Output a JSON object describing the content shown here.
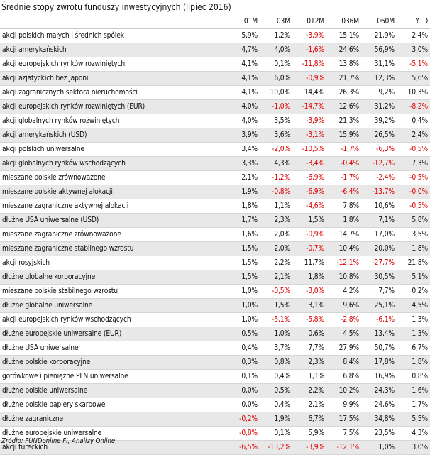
{
  "title": "Średnie stopy zwrotu funduszy inwestycyjnych (lipiec 2016)",
  "columns": [
    "",
    "01M",
    "03M",
    "012M",
    "036M",
    "060M",
    "YTD"
  ],
  "rows": [
    {
      "name": "akcji polskich małych i średnich spółek",
      "v": [
        "5,9%",
        "1,2%",
        "-3,9%",
        "15,1%",
        "21,9%",
        "2,4%"
      ]
    },
    {
      "name": "akcji amerykańskich",
      "v": [
        "4,7%",
        "4,0%",
        "-1,6%",
        "24,6%",
        "56,9%",
        "3,0%"
      ]
    },
    {
      "name": "akcji europejskich rynków rozwiniętych",
      "v": [
        "4,1%",
        "0,1%",
        "-11,8%",
        "13,8%",
        "31,1%",
        "-5,1%"
      ]
    },
    {
      "name": "akcji azjatyckich bez Japonii",
      "v": [
        "4,1%",
        "6,0%",
        "-0,9%",
        "21,7%",
        "12,3%",
        "5,6%"
      ]
    },
    {
      "name": "akcji zagranicznych sektora nieruchomości",
      "v": [
        "4,1%",
        "10,0%",
        "14,4%",
        "26,3%",
        "9,2%",
        "10,3%"
      ]
    },
    {
      "name": "akcji europejskich rynków rozwiniętych (EUR)",
      "v": [
        "4,0%",
        "-1,0%",
        "-14,7%",
        "12,6%",
        "31,2%",
        "-8,2%"
      ]
    },
    {
      "name": "akcji globalnych rynków rozwiniętych",
      "v": [
        "4,0%",
        "3,5%",
        "-3,9%",
        "21,3%",
        "39,2%",
        "0,4%"
      ]
    },
    {
      "name": "akcji amerykańskich (USD)",
      "v": [
        "3,9%",
        "3,6%",
        "-3,1%",
        "15,9%",
        "26,5%",
        "2,4%"
      ]
    },
    {
      "name": "akcji polskich uniwersalne",
      "v": [
        "3,4%",
        "-2,0%",
        "-10,5%",
        "-1,7%",
        "-6,3%",
        "-0,5%"
      ]
    },
    {
      "name": "akcji globalnych rynków wschodzących",
      "v": [
        "3,3%",
        "4,3%",
        "-3,4%",
        "-0,4%",
        "-12,7%",
        "7,3%"
      ]
    },
    {
      "name": "mieszane polskie zrównoważone",
      "v": [
        "2,1%",
        "-1,2%",
        "-6,9%",
        "-1,7%",
        "-2,4%",
        "-0,5%"
      ]
    },
    {
      "name": "mieszane polskie aktywnej alokacji",
      "v": [
        "1,9%",
        "-0,8%",
        "-6,9%",
        "-6,4%",
        "-13,7%",
        "-0,0%"
      ]
    },
    {
      "name": "mieszane zagraniczne aktywnej alokacji",
      "v": [
        "1,8%",
        "1,1%",
        "-4,6%",
        "7,8%",
        "10,6%",
        "-0,5%"
      ]
    },
    {
      "name": "dłużne USA uniwersalne (USD)",
      "v": [
        "1,7%",
        "2,3%",
        "1,5%",
        "1,8%",
        "7,1%",
        "5,8%"
      ]
    },
    {
      "name": "mieszane zagraniczne zrównoważone",
      "v": [
        "1,6%",
        "2,0%",
        "-0,9%",
        "14,7%",
        "17,0%",
        "3,5%"
      ]
    },
    {
      "name": "mieszane zagraniczne stabilnego wzrostu",
      "v": [
        "1,5%",
        "2,0%",
        "-0,7%",
        "10,4%",
        "20,0%",
        "1,8%"
      ]
    },
    {
      "name": "akcji rosyjskich",
      "v": [
        "1,5%",
        "2,2%",
        "11,7%",
        "-12,1%",
        "-27,7%",
        "21,8%"
      ]
    },
    {
      "name": "dłużne globalne korporacyjne",
      "v": [
        "1,5%",
        "2,1%",
        "1,8%",
        "10,8%",
        "30,5%",
        "5,1%"
      ]
    },
    {
      "name": "mieszane polskie stabilnego wzrostu",
      "v": [
        "1,0%",
        "-0,5%",
        "-3,0%",
        "4,2%",
        "7,7%",
        "0,2%"
      ]
    },
    {
      "name": "dłużne globalne uniwersalne",
      "v": [
        "1,0%",
        "1,5%",
        "3,1%",
        "9,6%",
        "25,1%",
        "4,5%"
      ]
    },
    {
      "name": "akcji europejskich rynków wschodzących",
      "v": [
        "1,0%",
        "-5,1%",
        "-5,8%",
        "-2,8%",
        "-6,1%",
        "1,3%"
      ]
    },
    {
      "name": "dłużne europejskie uniwersalne (EUR)",
      "v": [
        "0,5%",
        "1,0%",
        "0,6%",
        "4,5%",
        "13,4%",
        "1,3%"
      ]
    },
    {
      "name": "dłużne USA uniwersalne",
      "v": [
        "0,4%",
        "3,7%",
        "7,7%",
        "27,9%",
        "50,7%",
        "6,7%"
      ]
    },
    {
      "name": "dłużne polskie korporacyjne",
      "v": [
        "0,3%",
        "0,8%",
        "2,3%",
        "8,4%",
        "17,8%",
        "1,8%"
      ]
    },
    {
      "name": "gotówkowe i pieniężne PLN uniwersalne",
      "v": [
        "0,1%",
        "0,4%",
        "1,1%",
        "6,8%",
        "16,9%",
        "0,8%"
      ]
    },
    {
      "name": "dłużne polskie uniwersalne",
      "v": [
        "0,0%",
        "0,5%",
        "2,2%",
        "10,2%",
        "24,3%",
        "1,6%"
      ]
    },
    {
      "name": "dłużne polskie papiery skarbowe",
      "v": [
        "0,0%",
        "0,4%",
        "2,1%",
        "9,9%",
        "24,6%",
        "1,7%"
      ]
    },
    {
      "name": "dłużne zagraniczne",
      "v": [
        "-0,2%",
        "1,9%",
        "6,7%",
        "17,5%",
        "34,8%",
        "5,5%"
      ]
    },
    {
      "name": "dłużne europejskie uniwersalne",
      "v": [
        "-0,8%",
        "0,1%",
        "5,9%",
        "7,5%",
        "23,5%",
        "4,3%"
      ]
    },
    {
      "name": "akcji tureckich",
      "v": [
        "-6,5%",
        "-13,2%",
        "-3,9%",
        "-12,1%",
        "1,0%",
        "3,0%"
      ]
    }
  ],
  "source": "Źródło: FUNDonline FI, Analizy Online",
  "colors": {
    "negative": "#e00000",
    "stripe": "#e8e8e8",
    "text": "#111111"
  }
}
